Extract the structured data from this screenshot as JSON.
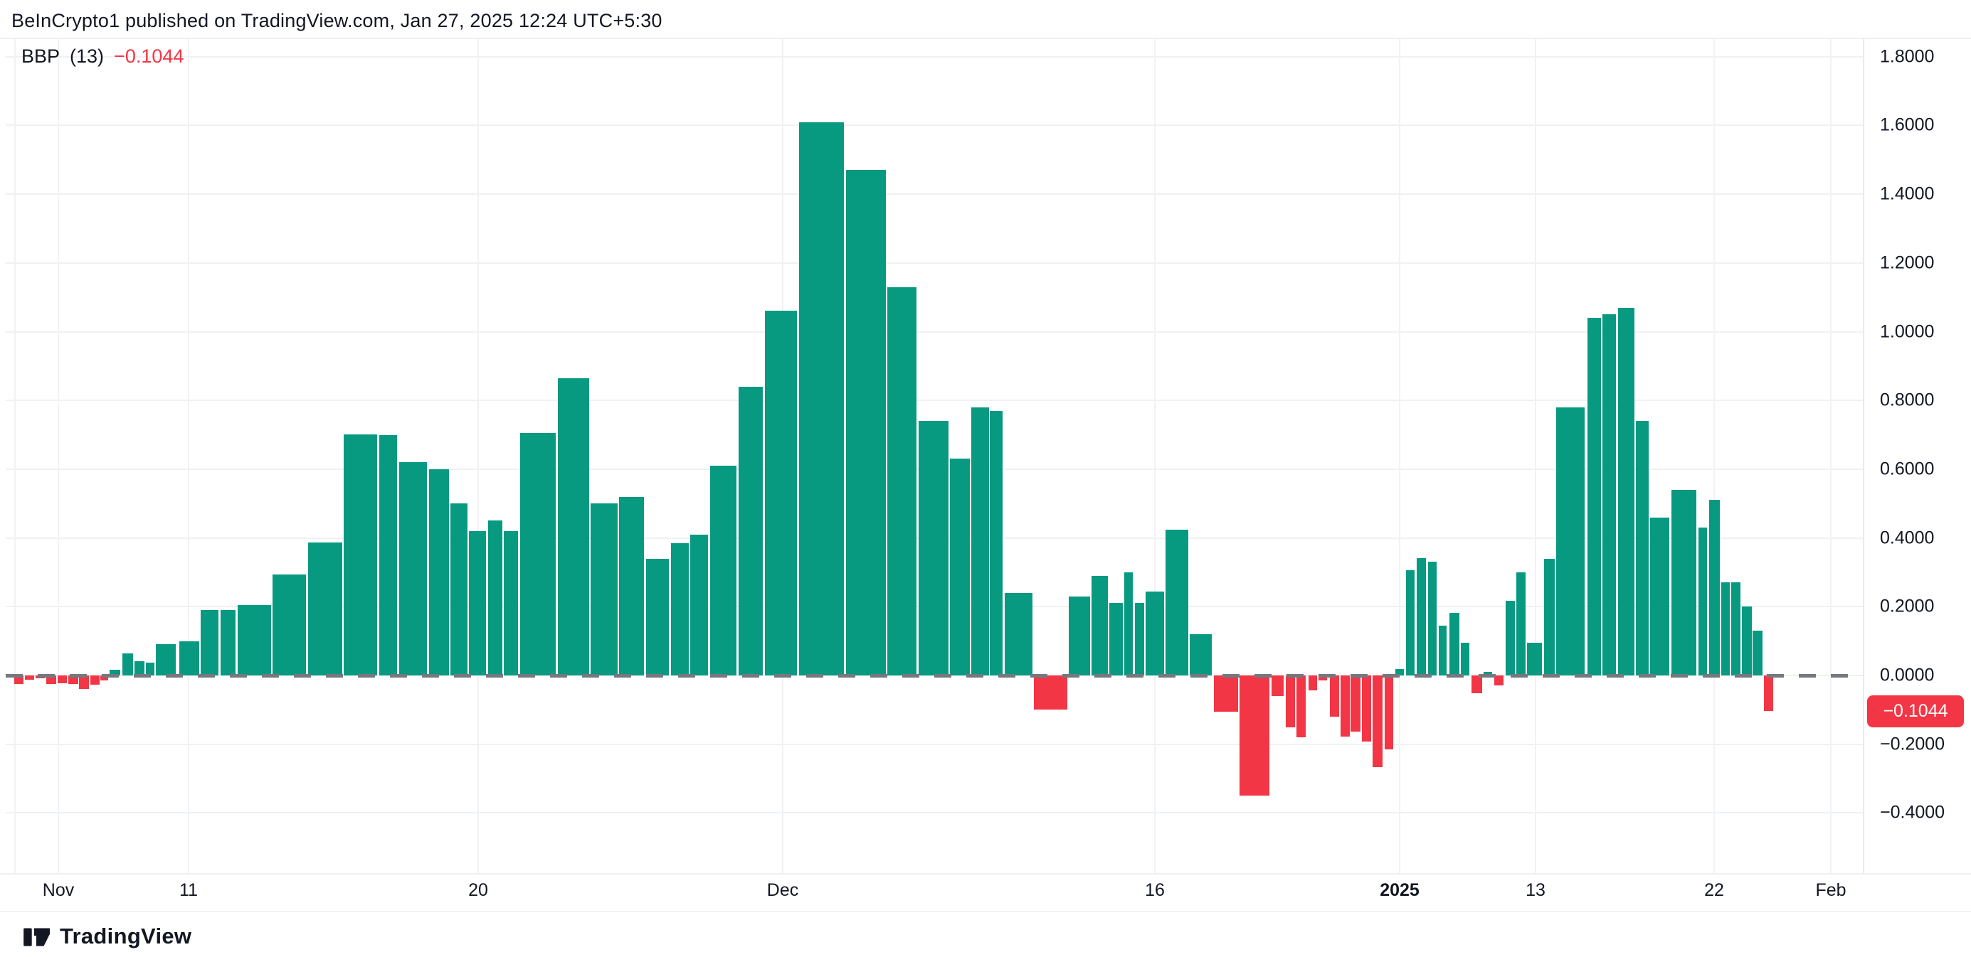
{
  "header": {
    "title": "BeInCrypto1 published on TradingView.com, Jan 27, 2025 12:24 UTC+5:30"
  },
  "indicator": {
    "name": "BBP",
    "params": "(13)",
    "value": "−0.1044"
  },
  "axis_badge": {
    "label": "−0.1044"
  },
  "logo": {
    "text": "TradingView"
  },
  "colors": {
    "positive": "#089981",
    "negative": "#F23645",
    "badge_bg": "#F23645",
    "badge_text": "#FFFFFF",
    "text": "#131722",
    "grid": "#EFF1F4",
    "zero_dash": "#75797F",
    "background": "#FFFFFF"
  },
  "chart_data": {
    "type": "bar",
    "title": "BBP (13) — Bull Bear Power daily histogram",
    "legend": "none",
    "grid": "on",
    "ylim": [
      -0.575,
      1.855
    ],
    "xlabel": "",
    "ylabel": "",
    "y_ticks": [
      {
        "v": 1.8,
        "label": "1.8000"
      },
      {
        "v": 1.6,
        "label": "1.6000"
      },
      {
        "v": 1.4,
        "label": "1.4000"
      },
      {
        "v": 1.2,
        "label": "1.2000"
      },
      {
        "v": 1.0,
        "label": "1.0000"
      },
      {
        "v": 0.8,
        "label": "0.8000"
      },
      {
        "v": 0.6,
        "label": "0.6000"
      },
      {
        "v": 0.4,
        "label": "0.4000"
      },
      {
        "v": 0.2,
        "label": "0.2000"
      },
      {
        "v": 0.0,
        "label": "0.0000"
      },
      {
        "v": -0.2,
        "label": "−0.2000"
      },
      {
        "v": -0.4,
        "label": "−0.4000"
      }
    ],
    "x_ticks": [
      {
        "label": "Nov",
        "x": 82,
        "bold": false
      },
      {
        "label": "11",
        "x": 265,
        "bold": false
      },
      {
        "label": "20",
        "x": 672,
        "bold": false
      },
      {
        "label": "Dec",
        "x": 1100,
        "bold": false
      },
      {
        "label": "16",
        "x": 1623,
        "bold": false
      },
      {
        "label": "2025",
        "x": 1967,
        "bold": true
      },
      {
        "label": "13",
        "x": 2158,
        "bold": false
      },
      {
        "label": "22",
        "x": 2409,
        "bold": false
      },
      {
        "label": "Feb",
        "x": 2573,
        "bold": false
      }
    ],
    "extra_vgrid_x": [
      21
    ],
    "bars_format": "[x_left_px, width_px, value]",
    "bars": [
      [
        20,
        13,
        -0.024
      ],
      [
        35,
        13,
        -0.012
      ],
      [
        50,
        13,
        -0.008
      ],
      [
        65,
        14,
        -0.025
      ],
      [
        81,
        13,
        -0.023
      ],
      [
        96,
        14,
        -0.025
      ],
      [
        111,
        14,
        -0.039
      ],
      [
        127,
        13,
        -0.026
      ],
      [
        141,
        11,
        -0.015
      ],
      [
        154,
        15,
        0.017
      ],
      [
        172,
        15,
        0.064
      ],
      [
        189,
        14,
        0.041
      ],
      [
        205,
        12,
        0.037
      ],
      [
        219,
        28,
        0.09
      ],
      [
        252,
        28,
        0.1
      ],
      [
        282,
        25,
        0.19
      ],
      [
        310,
        21,
        0.19
      ],
      [
        334,
        47,
        0.205
      ],
      [
        383,
        47,
        0.294
      ],
      [
        433,
        48,
        0.386
      ],
      [
        483,
        47,
        0.702
      ],
      [
        533,
        25,
        0.7
      ],
      [
        561,
        39,
        0.62
      ],
      [
        603,
        28,
        0.6
      ],
      [
        633,
        24,
        0.5
      ],
      [
        659,
        24,
        0.42
      ],
      [
        686,
        20,
        0.45
      ],
      [
        708,
        20,
        0.42
      ],
      [
        731,
        50,
        0.705
      ],
      [
        784,
        44,
        0.864
      ],
      [
        830,
        38,
        0.5
      ],
      [
        870,
        35,
        0.52
      ],
      [
        908,
        32,
        0.34
      ],
      [
        943,
        25,
        0.385
      ],
      [
        970,
        25,
        0.41
      ],
      [
        998,
        37,
        0.61
      ],
      [
        1038,
        34,
        0.84
      ],
      [
        1075,
        45,
        1.06
      ],
      [
        1123,
        63,
        1.61
      ],
      [
        1189,
        56,
        1.47
      ],
      [
        1247,
        41,
        1.13
      ],
      [
        1291,
        42,
        0.74
      ],
      [
        1335,
        28,
        0.63
      ],
      [
        1365,
        25,
        0.78
      ],
      [
        1391,
        18,
        0.77
      ],
      [
        1412,
        39,
        0.24
      ],
      [
        1453,
        47,
        -0.1
      ],
      [
        1502,
        30,
        0.23
      ],
      [
        1534,
        23,
        0.29
      ],
      [
        1559,
        19,
        0.21
      ],
      [
        1580,
        12,
        0.3
      ],
      [
        1595,
        13,
        0.21
      ],
      [
        1610,
        26,
        0.245
      ],
      [
        1638,
        32,
        0.423
      ],
      [
        1672,
        31,
        0.12
      ],
      [
        1706,
        34,
        -0.105
      ],
      [
        1742,
        42,
        -0.35
      ],
      [
        1787,
        17,
        -0.06
      ],
      [
        1807,
        13,
        -0.15
      ],
      [
        1822,
        13,
        -0.18
      ],
      [
        1839,
        12,
        -0.044
      ],
      [
        1853,
        12,
        -0.014
      ],
      [
        1869,
        13,
        -0.12
      ],
      [
        1884,
        13,
        -0.177
      ],
      [
        1898,
        14,
        -0.164
      ],
      [
        1914,
        13,
        -0.192
      ],
      [
        1929,
        14,
        -0.267
      ],
      [
        1946,
        12,
        -0.215
      ],
      [
        1961,
        12,
        0.018
      ],
      [
        1976,
        12,
        0.307
      ],
      [
        1991,
        13,
        0.342
      ],
      [
        2007,
        12,
        0.33
      ],
      [
        2022,
        11,
        0.145
      ],
      [
        2037,
        14,
        0.182
      ],
      [
        2053,
        12,
        0.095
      ],
      [
        2068,
        15,
        -0.052
      ],
      [
        2085,
        12,
        0.01
      ],
      [
        2100,
        13,
        -0.028
      ],
      [
        2116,
        13,
        0.218
      ],
      [
        2131,
        13,
        0.299
      ],
      [
        2146,
        21,
        0.095
      ],
      [
        2170,
        15,
        0.339
      ],
      [
        2187,
        40,
        0.78
      ],
      [
        2231,
        19,
        1.04
      ],
      [
        2252,
        19,
        1.05
      ],
      [
        2274,
        23,
        1.07
      ],
      [
        2299,
        18,
        0.74
      ],
      [
        2319,
        27,
        0.46
      ],
      [
        2349,
        35,
        0.54
      ],
      [
        2387,
        12,
        0.43
      ],
      [
        2402,
        15,
        0.51
      ],
      [
        2419,
        12,
        0.27
      ],
      [
        2433,
        13,
        0.27
      ],
      [
        2448,
        14,
        0.2
      ],
      [
        2463,
        14,
        0.13
      ],
      [
        2479,
        13,
        -0.104
      ]
    ],
    "geometry_note": "zero line at y=950px, 483.5px per 1.0 unit, plot y 53..1228"
  }
}
